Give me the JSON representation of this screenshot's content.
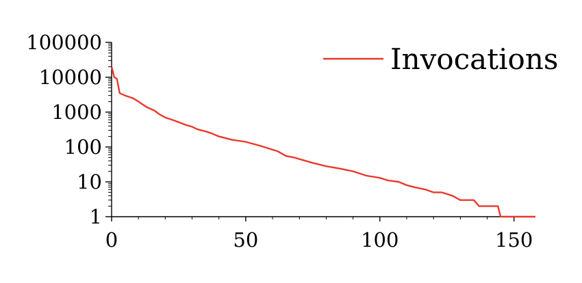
{
  "chart_data": {
    "type": "line",
    "title": "",
    "xlabel": "",
    "ylabel": "",
    "x_scale": "linear",
    "y_scale": "log",
    "xlim": [
      0,
      158
    ],
    "ylim": [
      1,
      100000
    ],
    "x_ticks": [
      0,
      50,
      100,
      150
    ],
    "x_tick_labels": [
      "0",
      "50",
      "100",
      "150"
    ],
    "y_ticks": [
      1,
      10,
      100,
      1000,
      10000,
      100000
    ],
    "y_tick_labels": [
      "1",
      "10",
      "100",
      "1000",
      "10000",
      "100000"
    ],
    "grid": false,
    "legend": {
      "position": "top-right",
      "entries": [
        "Invocations"
      ]
    },
    "series": [
      {
        "name": "Invocations",
        "color": "#e8392c",
        "x": [
          0,
          1,
          2,
          3,
          5,
          8,
          10,
          13,
          16,
          18,
          20,
          24,
          26,
          28,
          30,
          32,
          35,
          37,
          40,
          45,
          50,
          55,
          62,
          65,
          68,
          70,
          75,
          80,
          85,
          90,
          95,
          100,
          103,
          107,
          110,
          113,
          117,
          120,
          123,
          127,
          130,
          135,
          137,
          140,
          144,
          145,
          158
        ],
        "y": [
          20000,
          10000,
          9000,
          3500,
          3000,
          2500,
          2000,
          1400,
          1100,
          850,
          700,
          550,
          480,
          420,
          380,
          320,
          280,
          250,
          200,
          160,
          140,
          110,
          75,
          55,
          50,
          45,
          35,
          28,
          24,
          20,
          15,
          13,
          11,
          10,
          8,
          7,
          6,
          5,
          5,
          4,
          3,
          3,
          2,
          2,
          2,
          1,
          1
        ]
      }
    ]
  }
}
